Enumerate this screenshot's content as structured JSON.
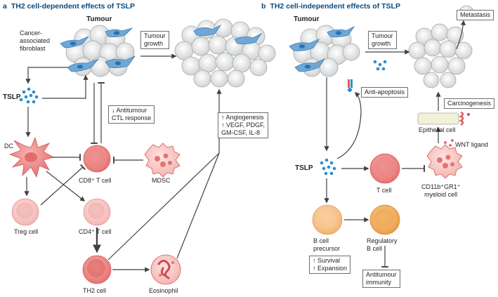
{
  "panel_a": {
    "letter": "a",
    "title": "TH2 cell-dependent effects of TSLP",
    "tumour": "Tumour",
    "caf": "Cancer-\nassociated\nfibroblast",
    "tumour_growth": "Tumour\ngrowth",
    "tslp": "TSLP",
    "antitumour_ctl": "↓ Antitumour\nCTL response",
    "angiogenesis": "↑ Angiogenesis\n↑ VEGF, PDGF,\nGM-CSF, IL-8",
    "dc": "DC",
    "cd8": "CD8⁺ T cell",
    "mdsc": "MDSC",
    "treg": "Treg cell",
    "cd4": "CD4⁺ T cell",
    "th2": "TH2 cell",
    "eosinophil": "Eosinophil"
  },
  "panel_b": {
    "letter": "b",
    "title": "TH2 cell-independent effects of TSLP",
    "tumour": "Tumour",
    "tumour_growth": "Tumour\ngrowth",
    "metastasis": "Metastasis",
    "anti_apoptosis": "Anti-apoptosis",
    "carcinogenesis": "Carcinogenesis",
    "epithelial": "Epithelial cell",
    "wnt": "WNT ligand",
    "tslp": "TSLP",
    "tcell": "T cell",
    "myeloid": "CD11b⁺GR1⁺\nmyeloid cell",
    "bcell_precursor": "B cell\nprecursor",
    "regulatory_b": "Regulatory\nB cell",
    "survival": "↑ Survival\n↑ Expansion",
    "antitumour_immunity": "Antitumour\nimmunity"
  },
  "colors": {
    "title_blue": "#0a4a7c",
    "tumour_cell": "#e6e7e8",
    "fibroblast": "#6fa8d6",
    "tslp_dots": "#2a8fd0",
    "pink_cell": "#f29a9a",
    "peach_cell": "#f7c28a"
  }
}
